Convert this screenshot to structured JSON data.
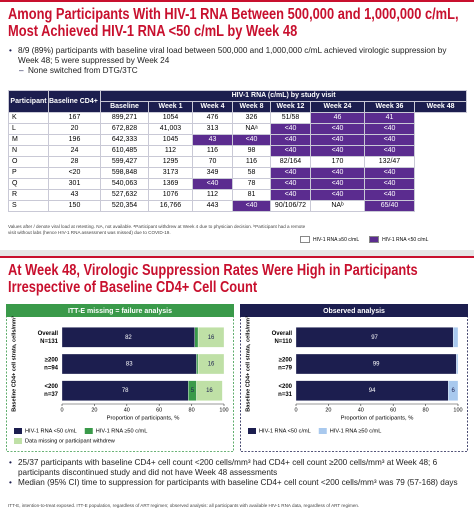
{
  "slide1": {
    "title": "Among Participants With HIV-1 RNA Between 500,000 and 1,000,000 c/mL, Most Achieved HIV-1 RNA <50 c/mL by Week 48",
    "bullets": [
      "8/9 (89%) participants with baseline viral load between 500,000 and 1,000,000 c/mL achieved virologic suppression by Week 48; 5 were suppressed by Week 24"
    ],
    "sub_bullets": [
      "None switched from DTG/3TC"
    ],
    "table": {
      "headers": [
        "Participant",
        "Baseline CD4+ cell count"
      ],
      "group_header": "HIV-1 RNA (c/mL) by study visit",
      "visits": [
        "Baseline",
        "Week 1",
        "Week 4",
        "Week 8",
        "Week 12",
        "Week 24",
        "Week 36",
        "Week 48"
      ],
      "rows": [
        {
          "cells": [
            "K",
            "167",
            "899,271",
            "1054",
            "476",
            "326",
            "51/58",
            "46",
            "41"
          ],
          "shaded": [
            7,
            8
          ]
        },
        {
          "cells": [
            "L",
            "20",
            "672,828",
            "41,003",
            "313",
            "NAᵃ",
            "<40",
            "<40",
            "<40"
          ],
          "shaded": [
            6,
            7,
            8
          ]
        },
        {
          "cells": [
            "M",
            "196",
            "642,333",
            "1045",
            "43",
            "<40",
            "<40",
            "<40",
            "<40"
          ],
          "shaded": [
            4,
            5,
            6,
            7,
            8
          ]
        },
        {
          "cells": [
            "N",
            "24",
            "610,485",
            "112",
            "116",
            "98",
            "<40",
            "<40",
            "<40"
          ],
          "shaded": [
            6,
            7,
            8
          ]
        },
        {
          "cells": [
            "O",
            "28",
            "599,427",
            "1295",
            "70",
            "116",
            "82/164",
            "170",
            "132/47"
          ],
          "shaded": []
        },
        {
          "cells": [
            "P",
            "<20",
            "598,848",
            "3173",
            "349",
            "58",
            "<40",
            "<40",
            "<40"
          ],
          "shaded": [
            6,
            7,
            8
          ]
        },
        {
          "cells": [
            "Q",
            "301",
            "540,063",
            "1369",
            "<40",
            "78",
            "<40",
            "<40",
            "<40"
          ],
          "shaded": [
            4,
            6,
            7,
            8
          ]
        },
        {
          "cells": [
            "R",
            "43",
            "527,632",
            "1076",
            "112",
            "81",
            "<40",
            "<40",
            "<40"
          ],
          "shaded": [
            6,
            7,
            8
          ]
        },
        {
          "cells": [
            "S",
            "150",
            "520,354",
            "16,766",
            "443",
            "<40",
            "90/106/72",
            "NAᵇ",
            "65/40"
          ],
          "shaded": [
            5,
            8
          ]
        }
      ]
    },
    "footnote": "Values after / denote viral load at retesting. NA, not available. ᵃParticipant withdrew at Week 4 due to physician decision. ᵇParticipant had a remote visit without labs (hence HIV-1 RNA assessment was missed) due to COVID-19.",
    "legend": [
      {
        "label": "HIV-1 RNA ≥50 c/mL",
        "color": "#ffffff"
      },
      {
        "label": "HIV-1 RNA <50 c/mL",
        "color": "#5b2c8f"
      }
    ]
  },
  "slide2": {
    "title": "At Week 48, Virologic Suppression Rates Were High in Participants Irrespective of Baseline CD4+ Cell Count",
    "bullets": [
      "25/37 participants with baseline CD4+ cell count <200 cells/mm³ had CD4+ cell count ≥200 cells/mm³ at Week 48; 6 participants discontinued study and did not have Week 48 assessments",
      "Median (95% CI) time to suppression for participants with baseline CD4+ cell count <200 cells/mm³ was 79 (57-168) days"
    ],
    "footnote": "ITT-E, intention-to-treat exposed. ITT-E population, regardless of ART regimen; observed analysis: all participants with available HIV-1 RNA data, regardless of ART regimen."
  },
  "chart_data": [
    {
      "type": "bar",
      "orientation": "horizontal",
      "stacked": true,
      "title": "ITT-E missing = failure analysis",
      "title_color": "#3a9a4a",
      "categories": [
        "Overall",
        "≥200",
        "<200"
      ],
      "n_labels": [
        "N=131",
        "n=94",
        "n=37"
      ],
      "series": [
        {
          "name": "HIV-1 RNA <50 c/mL",
          "color": "#1c1e4f",
          "values": [
            82,
            83,
            78
          ]
        },
        {
          "name": "HIV-1 RNA ≥50 c/mL",
          "color": "#3a9a4a",
          "values": [
            2,
            1,
            5
          ]
        },
        {
          "name": "Data missing or participant withdrew",
          "color": "#bfe0a6",
          "values": [
            16,
            16,
            16
          ]
        }
      ],
      "xlim": [
        0,
        100
      ],
      "xticks": [
        0,
        20,
        40,
        60,
        80,
        100
      ],
      "xlabel": "Proportion of participants, %",
      "ylabel": "Baseline CD4+ cell strata, cells/mm³"
    },
    {
      "type": "bar",
      "orientation": "horizontal",
      "stacked": true,
      "title": "Observed analysis",
      "title_color": "#1c1e4f",
      "categories": [
        "Overall",
        "≥200",
        "<200"
      ],
      "n_labels": [
        "N=110",
        "n=79",
        "n=31"
      ],
      "series": [
        {
          "name": "HIV-1 RNA <50 c/mL",
          "color": "#1c1e4f",
          "values": [
            97,
            99,
            94
          ]
        },
        {
          "name": "HIV-1 RNA ≥50 c/mL",
          "color": "#a9c9ee",
          "values": [
            3,
            1,
            6
          ]
        }
      ],
      "xlim": [
        0,
        100
      ],
      "xticks": [
        0,
        20,
        40,
        60,
        80,
        100
      ],
      "xlabel": "Proportion of participants, %",
      "ylabel": "Baseline CD4+ cell strata, cells/mm³"
    }
  ]
}
